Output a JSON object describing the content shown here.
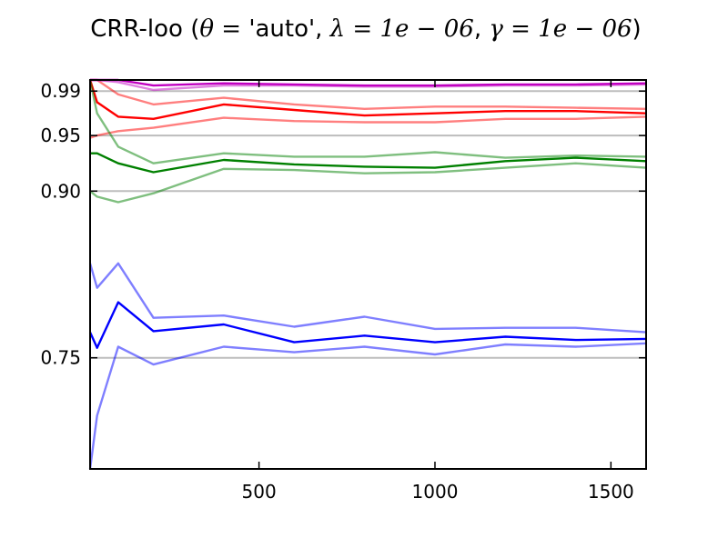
{
  "chart_data": {
    "type": "line",
    "title": {
      "prefix": "CRR-loo (",
      "theta": "θ",
      "eq1": " = ",
      "auto": "'auto'",
      "sep1": ", ",
      "lambda": "λ",
      "eq2": " = ",
      "lambda_val": "1e − 06",
      "sep2": ", ",
      "gamma": "γ",
      "eq3": " = ",
      "gamma_val": "1e − 06",
      "suffix": ")"
    },
    "xlabel": "",
    "ylabel": "",
    "xlim": [
      20,
      1600
    ],
    "ylim": [
      0.65,
      1.0
    ],
    "grid": "horizontal at y ticks",
    "x_ticks": [
      500,
      1000,
      1500
    ],
    "x_tick_labels": [
      "500",
      "1000",
      "1500"
    ],
    "y_ticks": [
      0.75,
      0.9,
      0.95,
      0.99
    ],
    "y_tick_labels": [
      "0.75",
      "0.90",
      "0.95",
      "0.99"
    ],
    "x": [
      20,
      40,
      100,
      200,
      400,
      600,
      800,
      1000,
      1200,
      1400,
      1600
    ],
    "series": [
      {
        "color": "#ff0000",
        "alpha": 0.5,
        "values": [
          0.948,
          0.95,
          0.954,
          0.957,
          0.966,
          0.963,
          0.962,
          0.962,
          0.965,
          0.965,
          0.967
        ]
      },
      {
        "color": "#ff0000",
        "alpha": 0.5,
        "values": [
          1.0,
          1.0,
          0.987,
          0.978,
          0.984,
          0.978,
          0.974,
          0.976,
          0.976,
          0.975,
          0.974
        ]
      },
      {
        "color": "#ff0000",
        "alpha": 1.0,
        "values": [
          1.0,
          0.98,
          0.967,
          0.965,
          0.978,
          0.973,
          0.968,
          0.97,
          0.972,
          0.972,
          0.97
        ]
      },
      {
        "color": "#008000",
        "alpha": 0.5,
        "values": [
          0.9,
          0.895,
          0.89,
          0.898,
          0.92,
          0.919,
          0.916,
          0.917,
          0.921,
          0.925,
          0.921
        ]
      },
      {
        "color": "#008000",
        "alpha": 0.5,
        "values": [
          1.0,
          0.97,
          0.94,
          0.925,
          0.934,
          0.931,
          0.931,
          0.935,
          0.93,
          0.932,
          0.931
        ]
      },
      {
        "color": "#008000",
        "alpha": 1.0,
        "values": [
          0.934,
          0.934,
          0.925,
          0.917,
          0.928,
          0.924,
          0.922,
          0.921,
          0.927,
          0.93,
          0.927
        ]
      },
      {
        "color": "#0000ff",
        "alpha": 0.5,
        "values": [
          0.65,
          0.698,
          0.76,
          0.744,
          0.76,
          0.755,
          0.76,
          0.753,
          0.762,
          0.76,
          0.763
        ]
      },
      {
        "color": "#0000ff",
        "alpha": 0.5,
        "values": [
          0.835,
          0.813,
          0.835,
          0.786,
          0.788,
          0.778,
          0.787,
          0.776,
          0.777,
          0.777,
          0.773
        ]
      },
      {
        "color": "#0000ff",
        "alpha": 1.0,
        "values": [
          0.773,
          0.759,
          0.8,
          0.774,
          0.78,
          0.764,
          0.77,
          0.764,
          0.769,
          0.766,
          0.767
        ]
      },
      {
        "color": "#c000c0",
        "alpha": 0.5,
        "values": [
          1.0,
          1.0,
          0.998,
          0.991,
          0.995,
          0.995,
          0.994,
          0.994,
          0.995,
          0.995,
          0.996
        ]
      },
      {
        "color": "#c000c0",
        "alpha": 1.0,
        "values": [
          1.0,
          1.0,
          1.0,
          0.995,
          0.997,
          0.996,
          0.995,
          0.995,
          0.996,
          0.996,
          0.997
        ]
      }
    ]
  }
}
